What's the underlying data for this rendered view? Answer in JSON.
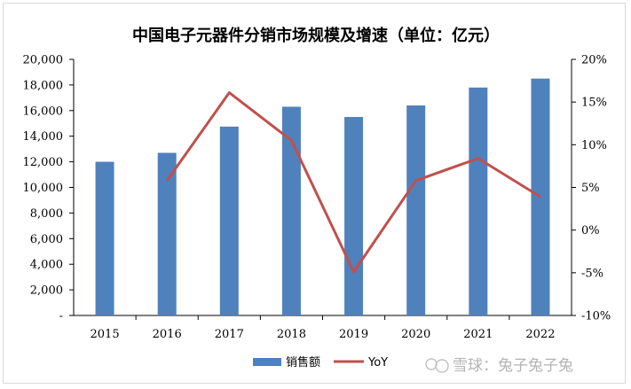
{
  "chart_data": {
    "type": "bar",
    "title": "中国电子元器件分销市场规模及增速（单位：亿元）",
    "categories": [
      "2015",
      "2016",
      "2017",
      "2018",
      "2019",
      "2020",
      "2021",
      "2022"
    ],
    "series": [
      {
        "name": "销售额",
        "type": "bar",
        "axis": "left",
        "color": "#4f81bd",
        "values": [
          12000,
          12700,
          14750,
          16300,
          15500,
          16400,
          17800,
          18500
        ]
      },
      {
        "name": "YoY",
        "type": "line",
        "axis": "right",
        "color": "#c0504d",
        "values": [
          null,
          5.8,
          16.1,
          10.5,
          -4.9,
          5.8,
          8.4,
          3.9
        ]
      }
    ],
    "y_left": {
      "min": 0,
      "max": 20000,
      "step": 2000,
      "tick_labels": [
        "-",
        "2,000",
        "4,000",
        "6,000",
        "8,000",
        "10,000",
        "12,000",
        "14,000",
        "16,000",
        "18,000",
        "20,000"
      ]
    },
    "y_right": {
      "min": -10,
      "max": 20,
      "step": 5,
      "tick_labels": [
        "-10%",
        "-5%",
        "0%",
        "5%",
        "10%",
        "15%",
        "20%"
      ]
    },
    "grid": false,
    "legend_position": "bottom"
  },
  "watermark": {
    "text": "雪球：兔子兔子兔"
  }
}
